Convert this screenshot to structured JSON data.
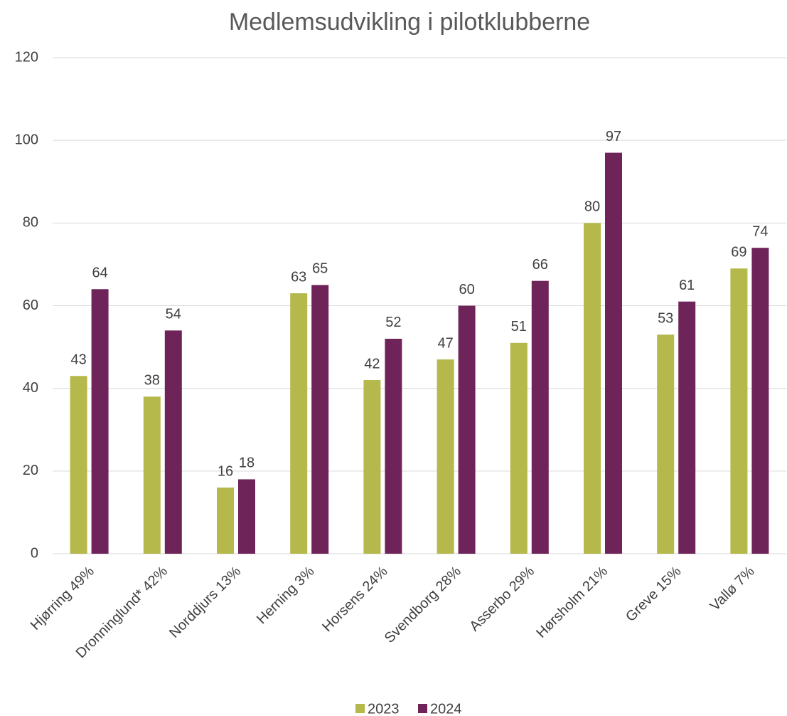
{
  "chart_data": {
    "type": "bar",
    "title": "Medlemsudvikling i pilotklubberne",
    "categories": [
      "Hjørring 49%",
      "Dronninglund* 42%",
      "Norddjurs 13%",
      "Herning 3%",
      "Horsens 24%",
      "Svendborg 28%",
      "Asserbo 29%",
      "Hørsholm 21%",
      "Greve 15%",
      "Vallø 7%"
    ],
    "series": [
      {
        "name": "2023",
        "color": "#b5b84a",
        "values": [
          43,
          38,
          16,
          63,
          42,
          47,
          51,
          80,
          53,
          69
        ]
      },
      {
        "name": "2024",
        "color": "#6e2459",
        "values": [
          64,
          54,
          18,
          65,
          52,
          60,
          66,
          97,
          61,
          74
        ]
      }
    ],
    "ylim": [
      0,
      120
    ],
    "yticks": [
      0,
      20,
      40,
      60,
      80,
      100,
      120
    ],
    "grid": true,
    "legend": "bottom"
  }
}
